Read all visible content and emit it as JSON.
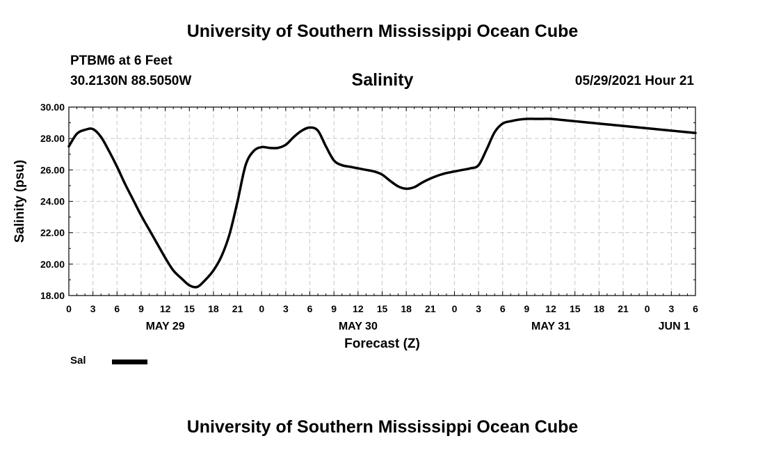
{
  "header": {
    "title": "University of Southern Mississippi Ocean Cube",
    "station": "PTBM6 at 6 Feet",
    "coordinates": "30.2130N  88.5050W",
    "parameter": "Salinity",
    "timestamp": "05/29/2021 Hour 21"
  },
  "footer": {
    "title": "University of Southern Mississippi Ocean Cube"
  },
  "chart_data": {
    "type": "line",
    "title": "Salinity",
    "xlabel": "Forecast (Z)",
    "ylabel": "Salinity (psu)",
    "ylim": [
      18.0,
      30.0
    ],
    "y_ticks": [
      "18.00",
      "20.00",
      "22.00",
      "24.00",
      "26.00",
      "28.00",
      "30.00"
    ],
    "x_unit": "hours from 0Z MAY 29",
    "xlim": [
      0,
      78
    ],
    "x_tick_labels": [
      "0",
      "3",
      "6",
      "9",
      "12",
      "15",
      "18",
      "21",
      "0",
      "3",
      "6",
      "9",
      "12",
      "15",
      "18",
      "21",
      "0",
      "3",
      "6",
      "9",
      "12",
      "15",
      "18",
      "21",
      "0",
      "3",
      "6"
    ],
    "date_labels": [
      {
        "label": "MAY 29",
        "hour": 12
      },
      {
        "label": "MAY 30",
        "hour": 36
      },
      {
        "label": "MAY 31",
        "hour": 60
      },
      {
        "label": "JUN 1",
        "hour": 78
      }
    ],
    "grid": true,
    "legend": {
      "position": "bottom-left"
    },
    "series": [
      {
        "name": "Sal",
        "color": "#000000",
        "x": [
          0,
          1,
          2,
          3,
          4,
          5,
          6,
          7,
          8,
          9,
          10,
          11,
          12,
          13,
          14,
          15,
          16,
          17,
          18,
          19,
          20,
          21,
          22,
          23,
          24,
          25,
          26,
          27,
          28,
          29,
          30,
          31,
          32,
          33,
          34,
          35,
          36,
          37,
          38,
          39,
          40,
          41,
          42,
          43,
          44,
          45,
          46,
          47,
          48,
          49,
          50,
          51,
          52,
          53,
          54,
          55,
          56,
          57,
          58,
          59,
          60,
          61,
          62,
          63,
          64,
          65,
          66,
          67,
          68,
          69,
          70,
          71,
          72,
          73,
          74,
          75,
          76,
          77,
          78
        ],
        "values": [
          27.5,
          28.3,
          28.55,
          28.6,
          28.1,
          27.2,
          26.2,
          25.1,
          24.1,
          23.1,
          22.2,
          21.3,
          20.4,
          19.6,
          19.1,
          18.65,
          18.55,
          19.0,
          19.6,
          20.5,
          21.9,
          24.0,
          26.3,
          27.2,
          27.45,
          27.4,
          27.4,
          27.6,
          28.1,
          28.5,
          28.7,
          28.5,
          27.5,
          26.6,
          26.3,
          26.2,
          26.1,
          26.0,
          25.9,
          25.7,
          25.3,
          24.95,
          24.8,
          24.9,
          25.2,
          25.45,
          25.65,
          25.8,
          25.9,
          26.0,
          26.1,
          26.3,
          27.3,
          28.4,
          28.95,
          29.1,
          29.2,
          29.25,
          29.25,
          29.25,
          29.25,
          29.2,
          29.15,
          29.1,
          29.05,
          29.0,
          28.95,
          28.9,
          28.85,
          28.8,
          28.75,
          28.7,
          28.65,
          28.6,
          28.55,
          28.5,
          28.45,
          28.4,
          28.35
        ]
      }
    ]
  },
  "legend": {
    "label": "Sal"
  }
}
